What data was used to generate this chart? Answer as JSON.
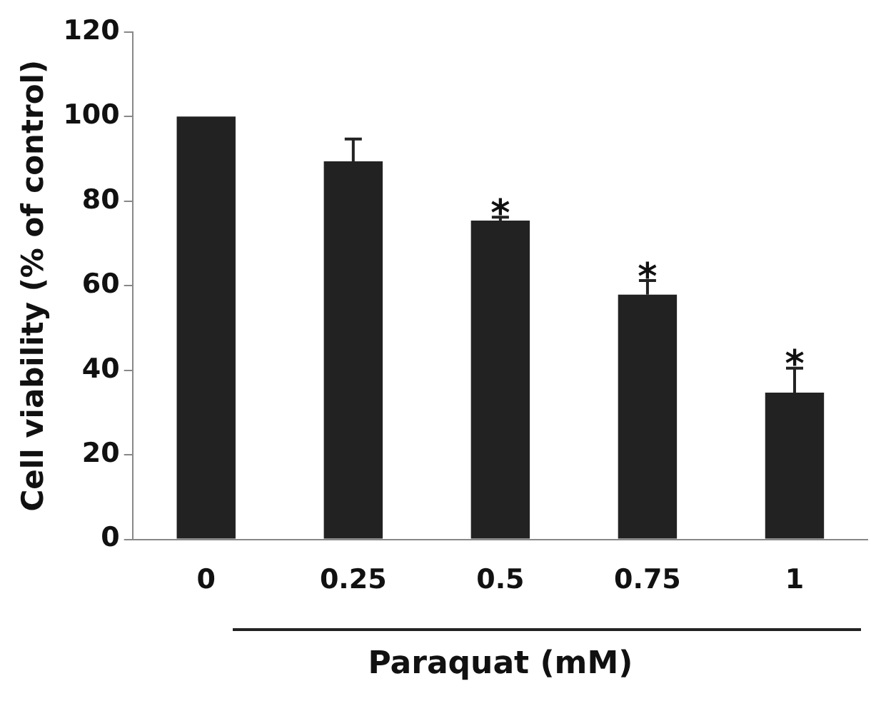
{
  "chart_data": {
    "type": "bar",
    "xlabel": "Paraquat (mM)",
    "ylabel": "Cell viability (% of control)",
    "categories": [
      "0",
      "0.25",
      "0.5",
      "0.75",
      "1"
    ],
    "values": [
      100,
      89.4,
      75.4,
      57.9,
      34.7
    ],
    "errors": [
      null,
      5.3,
      0.8,
      3.3,
      5.8
    ],
    "color": "#222222",
    "ylim": [
      0,
      120
    ],
    "yticks": [
      0,
      20,
      40,
      60,
      80,
      100,
      120
    ],
    "grid": false,
    "legend": false,
    "annotations": [
      {
        "text": "*",
        "x": "0.5",
        "y": 76.2
      },
      {
        "text": "*",
        "x": "0.75",
        "y": 61.2
      },
      {
        "text": "*",
        "x": "1",
        "y": 40.5
      }
    ]
  }
}
